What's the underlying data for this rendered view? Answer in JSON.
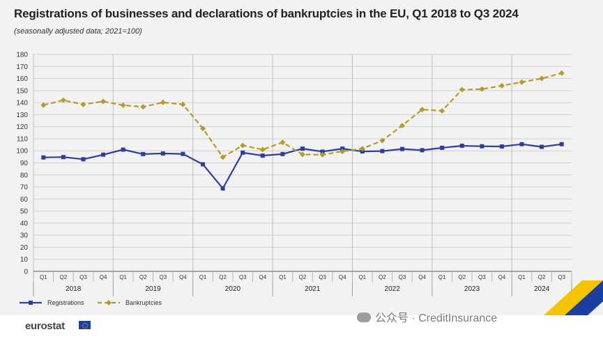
{
  "header": {
    "title": "Registrations of businesses and declarations of bankruptcies in the EU, Q1 2018 to Q3 2024",
    "subtitle": "(seasonally adjusted data; 2021=100)"
  },
  "footer": {
    "brand": "eurostat",
    "watermark": "公众号 · CreditInsurance"
  },
  "colors": {
    "registrations": "#2e3f9b",
    "bankruptcies": "#b59a2c",
    "grid": "#d0d0d0",
    "background": "#f2f2f2"
  },
  "chart_data": {
    "type": "line",
    "title": "Registrations of businesses and declarations of bankruptcies in the EU, Q1 2018 to Q3 2024",
    "subtitle": "(seasonally adjusted data; 2021=100)",
    "ylim": [
      0,
      180
    ],
    "yticks": [
      0,
      10,
      20,
      30,
      40,
      50,
      60,
      70,
      80,
      90,
      100,
      110,
      120,
      130,
      140,
      150,
      160,
      170,
      180
    ],
    "grid": "horizontal",
    "legend_position": "bottom-left",
    "quarters": [
      "Q1",
      "Q2",
      "Q3",
      "Q4",
      "Q1",
      "Q2",
      "Q3",
      "Q4",
      "Q1",
      "Q2",
      "Q3",
      "Q4",
      "Q1",
      "Q2",
      "Q3",
      "Q4",
      "Q1",
      "Q2",
      "Q3",
      "Q4",
      "Q1",
      "Q2",
      "Q3",
      "Q4",
      "Q1",
      "Q2",
      "Q3"
    ],
    "years": [
      "2018",
      "2019",
      "2020",
      "2021",
      "2022",
      "2023",
      "2024"
    ],
    "series": [
      {
        "name": "Registrations",
        "style": "solid",
        "marker": "square",
        "values": [
          94.5,
          94.8,
          93,
          96.8,
          101,
          97.3,
          97.8,
          97.4,
          88.8,
          68.8,
          98.5,
          96,
          97.3,
          101.8,
          99.3,
          101.8,
          99.5,
          99.8,
          101.5,
          100.5,
          102.5,
          104.2,
          103.8,
          103.6,
          105.5,
          103.3,
          105.5
        ]
      },
      {
        "name": "Bankruptcies",
        "style": "dashed",
        "marker": "diamond",
        "values": [
          138,
          142,
          138.5,
          141,
          137.8,
          136.5,
          140.2,
          138.5,
          118.5,
          94.8,
          104.5,
          101,
          107,
          97,
          96.8,
          99.5,
          101.8,
          108.5,
          121,
          134.2,
          133.2,
          150.8,
          151.2,
          154,
          157,
          160,
          164.5
        ]
      }
    ]
  }
}
